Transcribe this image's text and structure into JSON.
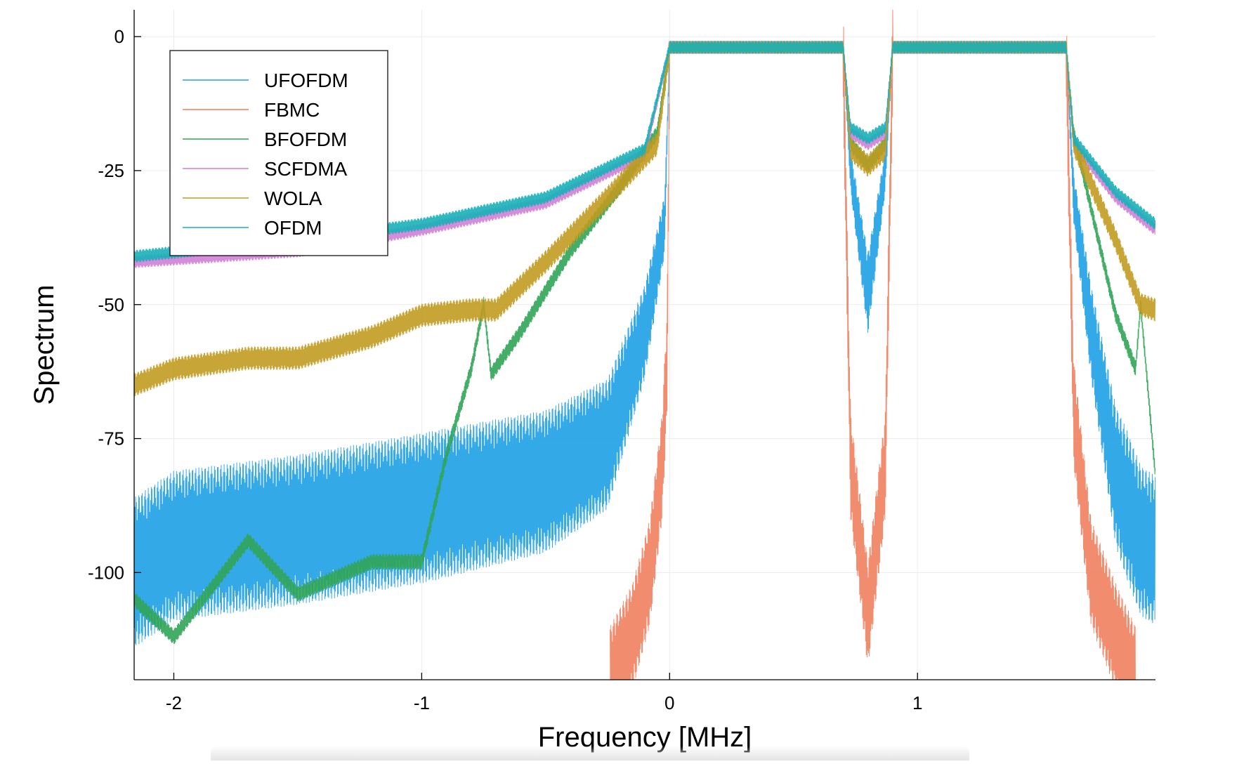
{
  "chart_data": {
    "type": "line",
    "title": "",
    "xlabel": "Frequency [MHz]",
    "ylabel": "Spectrum",
    "xlim": [
      -2.16,
      1.96
    ],
    "ylim": [
      -120,
      5
    ],
    "xticks": [
      -2,
      -1,
      0,
      1
    ],
    "xtick_labels": [
      "-2",
      "-1",
      "0",
      "1"
    ],
    "yticks": [
      0,
      -25,
      -50,
      -75,
      -100
    ],
    "ytick_labels": [
      "0",
      "-25",
      "-50",
      "-75",
      "-100"
    ],
    "grid": true,
    "legend_position": "top-left",
    "series": [
      {
        "name": "UFOFDM",
        "color": "#1ea0e6",
        "x": [
          -2.16,
          -2.0,
          -1.5,
          -1.0,
          -0.8,
          -0.5,
          -0.25,
          -0.1,
          -0.02,
          0.0,
          0.35,
          0.7,
          0.73,
          0.8,
          0.87,
          0.9,
          1.25,
          1.6,
          1.63,
          1.7,
          1.8,
          1.9,
          1.96
        ],
        "values": [
          -100,
          -95,
          -92,
          -88,
          -86,
          -83,
          -76,
          -55,
          -35,
          -2,
          -2,
          -2,
          -25,
          -48,
          -25,
          -2,
          -2,
          -2,
          -30,
          -55,
          -82,
          -94,
          -96
        ]
      },
      {
        "name": "FBMC",
        "color": "#f07f5e",
        "x": [
          -0.24,
          -0.15,
          -0.08,
          -0.03,
          -0.01,
          0.0,
          0.35,
          0.7,
          0.73,
          0.8,
          0.87,
          0.9,
          1.25,
          1.6,
          1.63,
          1.7,
          1.8,
          1.88
        ],
        "values": [
          -120,
          -112,
          -100,
          -80,
          -60,
          -2,
          -2,
          -2,
          -80,
          -108,
          -80,
          -2,
          -2,
          -2,
          -70,
          -100,
          -112,
          -120
        ]
      },
      {
        "name": "BFOFDM",
        "color": "#30a456",
        "x": [
          -2.16,
          -2.0,
          -1.7,
          -1.5,
          -1.2,
          -1.0,
          -0.9,
          -0.8,
          -0.75,
          -0.72,
          -0.6,
          -0.4,
          -0.2,
          -0.05,
          0.0,
          0.35,
          0.7,
          0.73,
          0.8,
          0.87,
          0.9,
          1.25,
          1.6,
          1.63,
          1.7,
          1.8,
          1.88,
          1.9,
          1.96
        ],
        "values": [
          -105,
          -112,
          -94,
          -104,
          -98,
          -98,
          -78,
          -62,
          -50,
          -63,
          -55,
          -40,
          -28,
          -18,
          -2,
          -2,
          -2,
          -20,
          -24,
          -20,
          -2,
          -2,
          -2,
          -18,
          -32,
          -52,
          -62,
          -50,
          -82
        ]
      },
      {
        "name": "SCFDMA",
        "color": "#d07fd6",
        "x": [
          -2.16,
          -1.5,
          -1.0,
          -0.5,
          -0.1,
          0.0,
          0.35,
          0.7,
          0.73,
          0.8,
          0.87,
          0.9,
          1.25,
          1.6,
          1.63,
          1.8,
          1.96
        ],
        "values": [
          -42,
          -40,
          -36,
          -31,
          -22,
          -2,
          -2,
          -2,
          -18,
          -20,
          -18,
          -2,
          -2,
          -2,
          -20,
          -30,
          -36
        ]
      },
      {
        "name": "WOLA",
        "color": "#c19b20",
        "x": [
          -2.16,
          -2.0,
          -1.7,
          -1.5,
          -1.2,
          -1.0,
          -0.8,
          -0.7,
          -0.5,
          -0.25,
          -0.05,
          0.0,
          0.35,
          0.7,
          0.73,
          0.8,
          0.87,
          0.9,
          1.25,
          1.6,
          1.63,
          1.8,
          1.9,
          1.96
        ],
        "values": [
          -65,
          -62,
          -60,
          -60,
          -56,
          -52,
          -51,
          -51,
          -42,
          -30,
          -20,
          -2,
          -2,
          -2,
          -21,
          -24,
          -21,
          -2,
          -2,
          -2,
          -20,
          -38,
          -50,
          -51
        ]
      },
      {
        "name": "OFDM",
        "color": "#1ab0b8",
        "x": [
          -2.16,
          -1.5,
          -1.0,
          -0.5,
          -0.1,
          0.0,
          0.35,
          0.7,
          0.73,
          0.8,
          0.87,
          0.9,
          1.25,
          1.6,
          1.63,
          1.8,
          1.96
        ],
        "values": [
          -41,
          -38,
          -35,
          -30,
          -21,
          -2,
          -2,
          -2,
          -17,
          -19,
          -17,
          -2,
          -2,
          -2,
          -19,
          -29,
          -35
        ]
      }
    ]
  }
}
